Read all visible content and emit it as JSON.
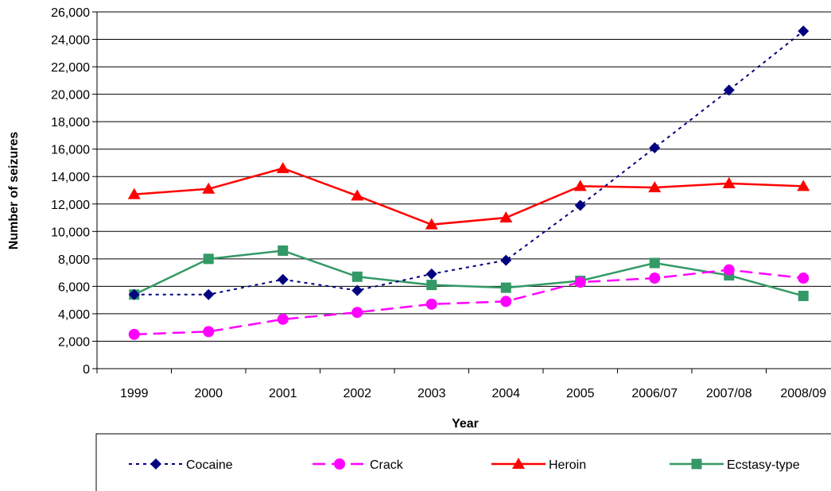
{
  "chart_data": {
    "type": "line",
    "title": "",
    "xlabel": "Year",
    "ylabel": "Number of seizures",
    "categories": [
      "1999",
      "2000",
      "2001",
      "2002",
      "2003",
      "2004",
      "2005",
      "2006/07",
      "2007/08",
      "2008/09"
    ],
    "ylim": [
      0,
      26000
    ],
    "yticks": [
      0,
      2000,
      4000,
      6000,
      8000,
      10000,
      12000,
      14000,
      16000,
      18000,
      20000,
      22000,
      24000,
      26000
    ],
    "ytick_labels": [
      "0",
      "2,000",
      "4,000",
      "6,000",
      "8,000",
      "10,000",
      "12,000",
      "14,000",
      "16,000",
      "18,000",
      "20,000",
      "22,000",
      "24,000",
      "26,000"
    ],
    "grid": "horizontal",
    "legend_position": "bottom",
    "series": [
      {
        "name": "Cocaine",
        "color": "#000080",
        "line_style": "dotted",
        "marker": "diamond",
        "values": [
          5400,
          5400,
          6500,
          5700,
          6900,
          7900,
          11900,
          16100,
          20300,
          24600
        ]
      },
      {
        "name": "Crack",
        "color": "#FF00FF",
        "line_style": "dashed",
        "marker": "circle",
        "values": [
          2500,
          2700,
          3600,
          4100,
          4700,
          4900,
          6300,
          6600,
          7200,
          6600
        ]
      },
      {
        "name": "Heroin",
        "color": "#FF0000",
        "line_style": "solid",
        "marker": "triangle",
        "values": [
          12700,
          13100,
          14600,
          12600,
          10500,
          11000,
          13300,
          13200,
          13500,
          13300
        ]
      },
      {
        "name": "Ecstasy-type",
        "color": "#339966",
        "line_style": "solid",
        "marker": "square",
        "values": [
          5400,
          8000,
          8600,
          6700,
          6100,
          5900,
          6400,
          7700,
          6800,
          5300
        ]
      }
    ]
  }
}
